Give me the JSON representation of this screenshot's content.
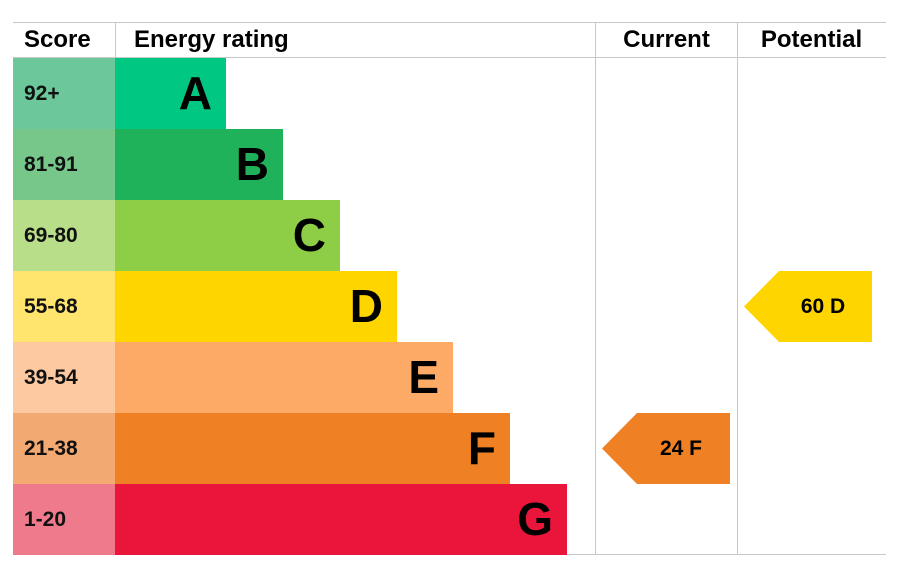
{
  "chart_data": {
    "type": "table",
    "headers": {
      "score": "Score",
      "rating": "Energy rating",
      "current": "Current",
      "potential": "Potential"
    },
    "bands": [
      {
        "score": "92+",
        "letter": "A",
        "color": "#00c781",
        "score_color": "#6cc79a"
      },
      {
        "score": "81-91",
        "letter": "B",
        "color": "#1fb25a",
        "score_color": "#78c78a"
      },
      {
        "score": "69-80",
        "letter": "C",
        "color": "#8dce46",
        "score_color": "#b9de8a"
      },
      {
        "score": "55-68",
        "letter": "D",
        "color": "#ffd500",
        "score_color": "#ffe46e"
      },
      {
        "score": "39-54",
        "letter": "E",
        "color": "#fcaa65",
        "score_color": "#fdc9a0"
      },
      {
        "score": "21-38",
        "letter": "F",
        "color": "#ef8023",
        "score_color": "#f2a972"
      },
      {
        "score": "1-20",
        "letter": "G",
        "color": "#e9153b",
        "score_color": "#ef7a8c"
      }
    ],
    "current": {
      "value": 24,
      "letter": "F",
      "label": "24  F",
      "color": "#ef8023"
    },
    "potential": {
      "value": 60,
      "letter": "D",
      "label": "60  D",
      "color": "#ffd500"
    }
  }
}
